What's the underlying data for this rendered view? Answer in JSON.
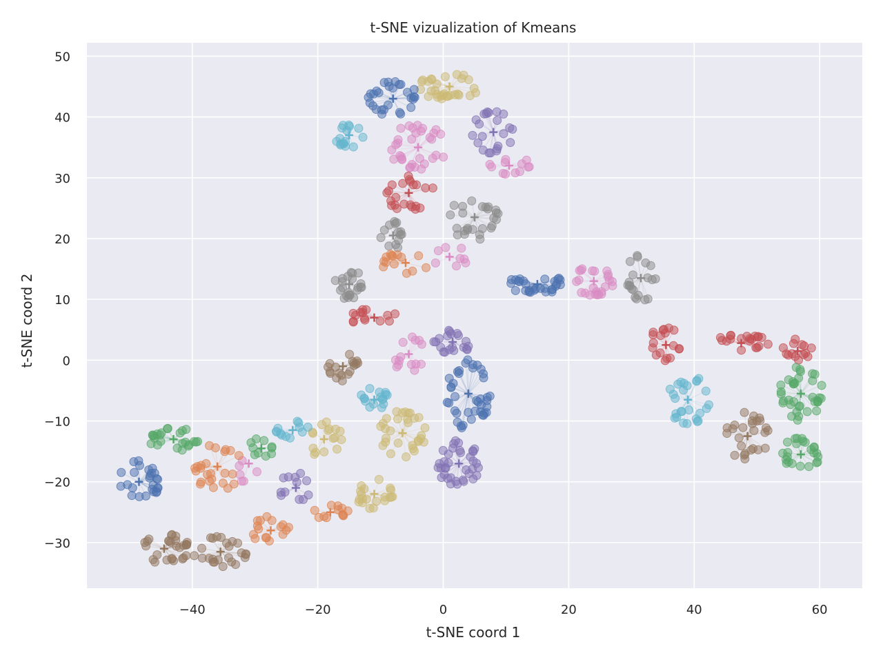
{
  "chart_data": {
    "type": "scatter",
    "title": "t-SNE vizualization of Kmeans",
    "xlabel": "t-SNE coord 1",
    "ylabel": "t-SNE coord 2",
    "xlim": [
      -56.8,
      66.8
    ],
    "ylim": [
      -37.5,
      52.2
    ],
    "xticks": [
      -40,
      -20,
      0,
      20,
      40,
      60
    ],
    "yticks": [
      -30,
      -20,
      -10,
      0,
      10,
      20,
      30,
      40,
      50
    ],
    "xtick_labels": [
      "−40",
      "−20",
      "0",
      "20",
      "40",
      "60"
    ],
    "ytick_labels": [
      "−30",
      "−20",
      "−10",
      "0",
      "10",
      "20",
      "30",
      "40",
      "50"
    ],
    "grid": true,
    "legend": "none",
    "marker": "circle",
    "centroid_marker": "+",
    "point_alpha": 0.5,
    "colors": [
      "#4c72b0",
      "#dd8452",
      "#55a868",
      "#c44e52",
      "#8172b3",
      "#937860",
      "#da8bc3",
      "#8c8c8c",
      "#ccb974",
      "#64b5cd"
    ],
    "clusters": [
      {
        "color": "#ccb974",
        "centroid": [
          1,
          45
        ],
        "spread": [
          5,
          2.2
        ],
        "n": 30
      },
      {
        "color": "#4c72b0",
        "centroid": [
          -8,
          43
        ],
        "spread": [
          4,
          3
        ],
        "n": 28
      },
      {
        "color": "#64b5cd",
        "centroid": [
          -15,
          37
        ],
        "spread": [
          2.5,
          2
        ],
        "n": 16
      },
      {
        "color": "#da8bc3",
        "centroid": [
          -4,
          35
        ],
        "spread": [
          4.5,
          4
        ],
        "n": 32
      },
      {
        "color": "#8172b3",
        "centroid": [
          8,
          37.5
        ],
        "spread": [
          3.5,
          3.5
        ],
        "n": 22
      },
      {
        "color": "#c44e52",
        "centroid": [
          -5.5,
          27.5
        ],
        "spread": [
          4,
          3
        ],
        "n": 22
      },
      {
        "color": "#da8bc3",
        "centroid": [
          10.5,
          32
        ],
        "spread": [
          3.5,
          1.5
        ],
        "n": 12
      },
      {
        "color": "#8c8c8c",
        "centroid": [
          5,
          23.5
        ],
        "spread": [
          4,
          4
        ],
        "n": 26
      },
      {
        "color": "#8c8c8c",
        "centroid": [
          -8,
          20.5
        ],
        "spread": [
          2,
          2.5
        ],
        "n": 14
      },
      {
        "color": "#dd8452",
        "centroid": [
          -6,
          16
        ],
        "spread": [
          4,
          1.8
        ],
        "n": 14
      },
      {
        "color": "#da8bc3",
        "centroid": [
          1,
          17
        ],
        "spread": [
          3,
          2
        ],
        "n": 8
      },
      {
        "color": "#8c8c8c",
        "centroid": [
          -15,
          12.5
        ],
        "spread": [
          2.5,
          2.5
        ],
        "n": 22
      },
      {
        "color": "#c44e52",
        "centroid": [
          -11,
          7
        ],
        "spread": [
          4,
          1.5
        ],
        "n": 14
      },
      {
        "color": "#da8bc3",
        "centroid": [
          -5.5,
          1
        ],
        "spread": [
          3,
          3
        ],
        "n": 14
      },
      {
        "color": "#8172b3",
        "centroid": [
          1.5,
          3
        ],
        "spread": [
          3,
          2
        ],
        "n": 20
      },
      {
        "color": "#4c72b0",
        "centroid": [
          4,
          -5.5
        ],
        "spread": [
          3.5,
          6
        ],
        "n": 40
      },
      {
        "color": "#8172b3",
        "centroid": [
          2.5,
          -17
        ],
        "spread": [
          3.5,
          4
        ],
        "n": 36
      },
      {
        "color": "#937860",
        "centroid": [
          -16,
          -1
        ],
        "spread": [
          2.5,
          2.5
        ],
        "n": 18
      },
      {
        "color": "#64b5cd",
        "centroid": [
          -11,
          -6.5
        ],
        "spread": [
          2.5,
          2
        ],
        "n": 16
      },
      {
        "color": "#ccb974",
        "centroid": [
          -6.5,
          -12
        ],
        "spread": [
          4,
          4
        ],
        "n": 30
      },
      {
        "color": "#ccb974",
        "centroid": [
          -19,
          -13
        ],
        "spread": [
          3,
          3
        ],
        "n": 16
      },
      {
        "color": "#ccb974",
        "centroid": [
          -11,
          -22
        ],
        "spread": [
          3,
          2.5
        ],
        "n": 20
      },
      {
        "color": "#64b5cd",
        "centroid": [
          -24,
          -11.5
        ],
        "spread": [
          3,
          1.5
        ],
        "n": 12
      },
      {
        "color": "#55a868",
        "centroid": [
          -29,
          -14.5
        ],
        "spread": [
          2,
          1.8
        ],
        "n": 10
      },
      {
        "color": "#da8bc3",
        "centroid": [
          -31,
          -17
        ],
        "spread": [
          2,
          4
        ],
        "n": 6
      },
      {
        "color": "#8172b3",
        "centroid": [
          -23.5,
          -21
        ],
        "spread": [
          3,
          2.5
        ],
        "n": 12
      },
      {
        "color": "#dd8452",
        "centroid": [
          -18,
          -25
        ],
        "spread": [
          3,
          1.2
        ],
        "n": 12
      },
      {
        "color": "#dd8452",
        "centroid": [
          -27.5,
          -28
        ],
        "spread": [
          3,
          2.5
        ],
        "n": 16
      },
      {
        "color": "#55a868",
        "centroid": [
          -43,
          -13
        ],
        "spread": [
          4,
          2
        ],
        "n": 24
      },
      {
        "color": "#4c72b0",
        "centroid": [
          -48.5,
          -20
        ],
        "spread": [
          3.5,
          3.5
        ],
        "n": 26
      },
      {
        "color": "#dd8452",
        "centroid": [
          -36,
          -17.5
        ],
        "spread": [
          4,
          4
        ],
        "n": 24
      },
      {
        "color": "#937860",
        "centroid": [
          -44.5,
          -31
        ],
        "spread": [
          4,
          3
        ],
        "n": 28
      },
      {
        "color": "#937860",
        "centroid": [
          -35.5,
          -31.5
        ],
        "spread": [
          4.5,
          2.5
        ],
        "n": 24
      },
      {
        "color": "#4c72b0",
        "centroid": [
          15,
          12.5
        ],
        "spread": [
          5,
          1.5
        ],
        "n": 30
      },
      {
        "color": "#da8bc3",
        "centroid": [
          24,
          13
        ],
        "spread": [
          3.5,
          2.5
        ],
        "n": 24
      },
      {
        "color": "#8c8c8c",
        "centroid": [
          31.5,
          13.5
        ],
        "spread": [
          2.5,
          4
        ],
        "n": 20
      },
      {
        "color": "#c44e52",
        "centroid": [
          35.5,
          2.5
        ],
        "spread": [
          3,
          3
        ],
        "n": 18
      },
      {
        "color": "#c44e52",
        "centroid": [
          47.5,
          2.8
        ],
        "spread": [
          4.5,
          1.5
        ],
        "n": 20
      },
      {
        "color": "#c44e52",
        "centroid": [
          56.5,
          1.5
        ],
        "spread": [
          2.5,
          2
        ],
        "n": 14
      },
      {
        "color": "#64b5cd",
        "centroid": [
          39,
          -6.5
        ],
        "spread": [
          3.5,
          4
        ],
        "n": 26
      },
      {
        "color": "#937860",
        "centroid": [
          48.5,
          -12.5
        ],
        "spread": [
          3.5,
          4
        ],
        "n": 26
      },
      {
        "color": "#55a868",
        "centroid": [
          57,
          -5.5
        ],
        "spread": [
          3.5,
          4.5
        ],
        "n": 36
      },
      {
        "color": "#55a868",
        "centroid": [
          57,
          -15.5
        ],
        "spread": [
          3,
          3
        ],
        "n": 24
      }
    ]
  }
}
